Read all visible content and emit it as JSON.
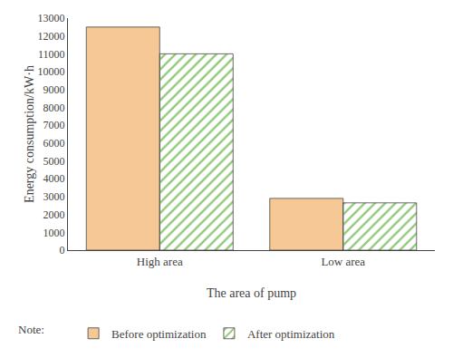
{
  "chart_data": {
    "type": "bar",
    "categories": [
      "High area",
      "Low area"
    ],
    "series": [
      {
        "name": "Before optimization",
        "color": "#F5C896",
        "values": [
          12500,
          2900
        ]
      },
      {
        "name": "After optimization",
        "color": "#90C878",
        "values": [
          11000,
          2650
        ]
      }
    ],
    "xlabel": "The area of pump",
    "ylabel": "Energy consumption/kW·h",
    "ylim": [
      0,
      13000
    ],
    "yticks": [
      0,
      1000,
      2000,
      3000,
      4000,
      5000,
      6000,
      7000,
      8000,
      9000,
      10000,
      11000,
      12000,
      13000
    ],
    "grid": false,
    "legend": "bottom",
    "annotations": [
      "Note:"
    ]
  }
}
